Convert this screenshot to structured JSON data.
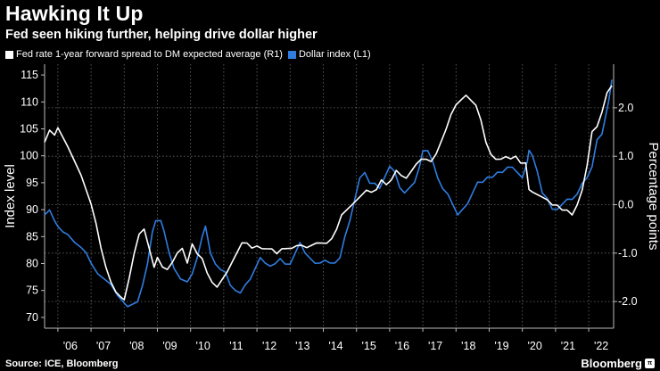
{
  "header": {
    "title": "Hawking It Up",
    "subtitle": "Fed seen hiking further, helping drive dollar higher"
  },
  "footer": {
    "source": "Source: ICE, Bloomberg",
    "brand": "Bloomberg",
    "badge": "π"
  },
  "chart_data": {
    "type": "line",
    "legend": [
      {
        "name": "Fed rate 1-year forward spread to DM expected average (R1)",
        "color": "#ffffff"
      },
      {
        "name": "Dollar index (L1)",
        "color": "#2f7de1"
      }
    ],
    "ylabel_left": "Index level",
    "ylabel_right": "Percentage points",
    "xlim": [
      2005.6,
      2022.75
    ],
    "ylim_left": [
      68,
      117
    ],
    "ylim_right": [
      -2.55,
      2.9
    ],
    "xticks": [
      {
        "v": 2006,
        "label": "'06"
      },
      {
        "v": 2007,
        "label": "'07"
      },
      {
        "v": 2008,
        "label": "'08"
      },
      {
        "v": 2009,
        "label": "'09"
      },
      {
        "v": 2010,
        "label": "'10"
      },
      {
        "v": 2011,
        "label": "'11"
      },
      {
        "v": 2012,
        "label": "'12"
      },
      {
        "v": 2013,
        "label": "'13"
      },
      {
        "v": 2014,
        "label": "'14"
      },
      {
        "v": 2015,
        "label": "'15"
      },
      {
        "v": 2016,
        "label": "'16"
      },
      {
        "v": 2017,
        "label": "'17"
      },
      {
        "v": 2018,
        "label": "'18"
      },
      {
        "v": 2019,
        "label": "'19"
      },
      {
        "v": 2020,
        "label": "'20"
      },
      {
        "v": 2021,
        "label": "'21"
      },
      {
        "v": 2022,
        "label": "'22"
      }
    ],
    "yticks_left": [
      {
        "v": 70,
        "label": "70"
      },
      {
        "v": 75,
        "label": "75"
      },
      {
        "v": 80,
        "label": "80"
      },
      {
        "v": 85,
        "label": "85"
      },
      {
        "v": 90,
        "label": "90"
      },
      {
        "v": 95,
        "label": "95"
      },
      {
        "v": 100,
        "label": "100"
      },
      {
        "v": 105,
        "label": "105"
      },
      {
        "v": 110,
        "label": "110"
      },
      {
        "v": 115,
        "label": "115"
      }
    ],
    "yticks_right": [
      {
        "v": -2.0,
        "label": "-2.0"
      },
      {
        "v": -1.0,
        "label": "-1.0"
      },
      {
        "v": 0.0,
        "label": "0.0"
      },
      {
        "v": 1.0,
        "label": "1.0"
      },
      {
        "v": 2.0,
        "label": "2.0"
      }
    ],
    "series": [
      {
        "name": "Dollar index (L1)",
        "axis": "left",
        "color": "#2f7de1",
        "x": [
          2005.6,
          2005.75,
          2005.9,
          2006.0,
          2006.15,
          2006.3,
          2006.5,
          2006.7,
          2006.85,
          2007.0,
          2007.2,
          2007.4,
          2007.6,
          2007.8,
          2007.95,
          2008.1,
          2008.25,
          2008.4,
          2008.55,
          2008.7,
          2008.85,
          2008.95,
          2009.1,
          2009.2,
          2009.35,
          2009.5,
          2009.7,
          2009.9,
          2010.05,
          2010.2,
          2010.35,
          2010.45,
          2010.6,
          2010.75,
          2010.9,
          2011.05,
          2011.2,
          2011.35,
          2011.5,
          2011.65,
          2011.8,
          2011.95,
          2012.1,
          2012.25,
          2012.4,
          2012.55,
          2012.7,
          2012.85,
          2013.0,
          2013.15,
          2013.3,
          2013.45,
          2013.6,
          2013.75,
          2013.9,
          2014.05,
          2014.2,
          2014.35,
          2014.5,
          2014.65,
          2014.8,
          2014.95,
          2015.1,
          2015.25,
          2015.4,
          2015.55,
          2015.7,
          2015.85,
          2016.0,
          2016.15,
          2016.3,
          2016.45,
          2016.6,
          2016.75,
          2016.9,
          2017.0,
          2017.15,
          2017.3,
          2017.45,
          2017.6,
          2017.75,
          2017.9,
          2018.05,
          2018.2,
          2018.35,
          2018.5,
          2018.65,
          2018.8,
          2018.95,
          2019.1,
          2019.25,
          2019.4,
          2019.55,
          2019.7,
          2019.85,
          2020.0,
          2020.15,
          2020.2,
          2020.3,
          2020.45,
          2020.6,
          2020.75,
          2020.9,
          2021.05,
          2021.2,
          2021.35,
          2021.5,
          2021.65,
          2021.8,
          2021.95,
          2022.1,
          2022.25,
          2022.4,
          2022.5,
          2022.6,
          2022.7
        ],
        "y": [
          89,
          90,
          88,
          87,
          86,
          85.5,
          84,
          83,
          82,
          80,
          78,
          77,
          76,
          74,
          73,
          72,
          72.5,
          73,
          76,
          80,
          86,
          88,
          88,
          86,
          82,
          79,
          77,
          76.5,
          78,
          81,
          85,
          87,
          82,
          80,
          79,
          78.5,
          76,
          75,
          74.5,
          76,
          77,
          79,
          81,
          80,
          79.5,
          80,
          81,
          80,
          80,
          82,
          84,
          82,
          81,
          80,
          80,
          80.5,
          80,
          80,
          81,
          85,
          88,
          92,
          96,
          97,
          95,
          95,
          94,
          96,
          98,
          97,
          94,
          93,
          94,
          95,
          98,
          101,
          101,
          99,
          96,
          94,
          93,
          91,
          89,
          90,
          91,
          93,
          95,
          95,
          96,
          96,
          97,
          97,
          98,
          98,
          97,
          96,
          99,
          101,
          100,
          97,
          93,
          92,
          90,
          90,
          91,
          92,
          92,
          93,
          95,
          96,
          98,
          103,
          104,
          107,
          110,
          114
        ]
      },
      {
        "name": "Fed rate 1-year forward spread to DM expected average (R1)",
        "axis": "right",
        "color": "#ffffff",
        "x": [
          2005.6,
          2005.75,
          2005.9,
          2006.0,
          2006.15,
          2006.3,
          2006.5,
          2006.7,
          2006.85,
          2007.0,
          2007.15,
          2007.3,
          2007.45,
          2007.6,
          2007.75,
          2007.9,
          2008.0,
          2008.15,
          2008.3,
          2008.45,
          2008.6,
          2008.75,
          2008.9,
          2009.0,
          2009.15,
          2009.3,
          2009.45,
          2009.6,
          2009.75,
          2009.9,
          2010.05,
          2010.2,
          2010.35,
          2010.5,
          2010.65,
          2010.8,
          2010.95,
          2011.1,
          2011.25,
          2011.4,
          2011.55,
          2011.7,
          2011.85,
          2012.0,
          2012.15,
          2012.3,
          2012.45,
          2012.6,
          2012.75,
          2012.9,
          2013.05,
          2013.2,
          2013.35,
          2013.5,
          2013.65,
          2013.8,
          2013.95,
          2014.1,
          2014.25,
          2014.4,
          2014.55,
          2014.7,
          2014.85,
          2015.0,
          2015.15,
          2015.3,
          2015.45,
          2015.6,
          2015.75,
          2015.9,
          2016.05,
          2016.2,
          2016.35,
          2016.5,
          2016.65,
          2016.8,
          2016.95,
          2017.1,
          2017.25,
          2017.4,
          2017.55,
          2017.7,
          2017.85,
          2018.0,
          2018.15,
          2018.3,
          2018.45,
          2018.6,
          2018.75,
          2018.9,
          2019.05,
          2019.2,
          2019.35,
          2019.5,
          2019.65,
          2019.8,
          2019.95,
          2020.1,
          2020.2,
          2020.3,
          2020.45,
          2020.6,
          2020.75,
          2020.9,
          2021.05,
          2021.2,
          2021.35,
          2021.5,
          2021.65,
          2021.8,
          2021.95,
          2022.1,
          2022.25,
          2022.4,
          2022.55,
          2022.7
        ],
        "y": [
          1.3,
          1.55,
          1.45,
          1.6,
          1.4,
          1.2,
          0.9,
          0.6,
          0.3,
          0.0,
          -0.4,
          -0.9,
          -1.3,
          -1.6,
          -1.8,
          -1.9,
          -1.95,
          -1.5,
          -1.0,
          -0.6,
          -0.5,
          -0.9,
          -1.3,
          -1.1,
          -1.3,
          -1.35,
          -1.2,
          -1.0,
          -0.9,
          -1.2,
          -0.8,
          -1.0,
          -1.1,
          -1.4,
          -1.6,
          -1.7,
          -1.55,
          -1.4,
          -1.2,
          -1.0,
          -0.8,
          -0.8,
          -0.9,
          -0.85,
          -0.9,
          -0.9,
          -0.9,
          -1.0,
          -0.9,
          -0.9,
          -0.9,
          -0.85,
          -0.85,
          -0.9,
          -0.85,
          -0.8,
          -0.8,
          -0.8,
          -0.7,
          -0.5,
          -0.2,
          -0.1,
          0.0,
          0.1,
          0.2,
          0.3,
          0.25,
          0.3,
          0.5,
          0.4,
          0.5,
          0.7,
          0.6,
          0.55,
          0.7,
          0.85,
          0.95,
          0.95,
          0.9,
          1.05,
          1.3,
          1.55,
          1.85,
          2.05,
          2.15,
          2.25,
          2.15,
          2.05,
          1.75,
          1.3,
          1.05,
          0.95,
          0.95,
          1.0,
          0.95,
          1.0,
          0.85,
          0.85,
          0.3,
          0.25,
          0.2,
          0.15,
          0.1,
          0.0,
          0.0,
          -0.1,
          -0.1,
          -0.2,
          0.0,
          0.3,
          0.8,
          1.5,
          1.6,
          1.9,
          2.3,
          2.45
        ]
      }
    ]
  }
}
